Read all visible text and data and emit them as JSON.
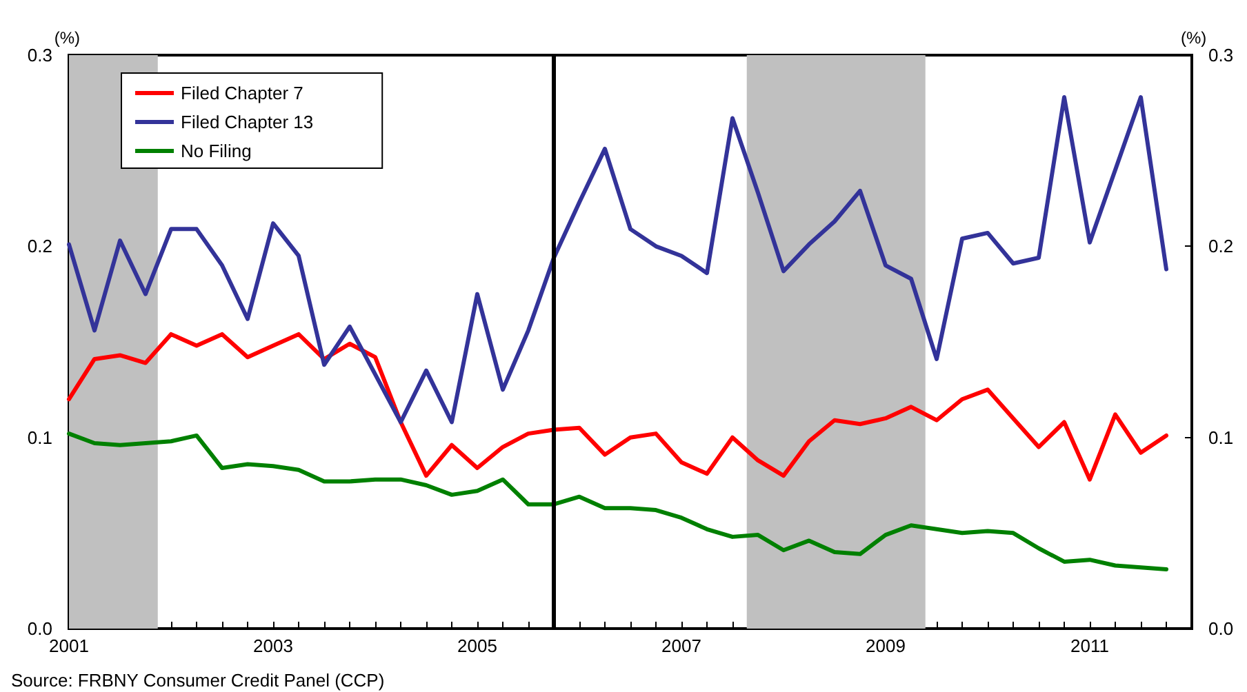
{
  "chart_data": {
    "type": "line",
    "ylabel": "(%)",
    "y2label": "(%)",
    "x": [
      2001,
      2001.25,
      2001.5,
      2001.75,
      2002,
      2002.25,
      2002.5,
      2002.75,
      2003,
      2003.25,
      2003.5,
      2003.75,
      2004,
      2004.25,
      2004.5,
      2004.75,
      2005,
      2005.25,
      2005.5,
      2005.75,
      2006,
      2006.25,
      2006.5,
      2006.75,
      2007,
      2007.25,
      2007.5,
      2007.75,
      2008,
      2008.25,
      2008.5,
      2008.75,
      2009,
      2009.25,
      2009.5,
      2009.75,
      2010,
      2010.25,
      2010.5,
      2010.75,
      2011,
      2011.25,
      2011.5,
      2011.75
    ],
    "series": [
      {
        "name": "Filed Chapter 7",
        "color": "#ff0000",
        "values": [
          0.12,
          0.141,
          0.143,
          0.139,
          0.154,
          0.148,
          0.154,
          0.142,
          0.148,
          0.154,
          0.141,
          0.149,
          0.142,
          0.108,
          0.08,
          0.096,
          0.084,
          0.095,
          0.102,
          0.104,
          0.105,
          0.091,
          0.1,
          0.102,
          0.087,
          0.081,
          0.1,
          0.088,
          0.08,
          0.098,
          0.109,
          0.107,
          0.11,
          0.116,
          0.109,
          0.12,
          0.125,
          0.11,
          0.095,
          0.108,
          0.078,
          0.112,
          0.092,
          0.101
        ]
      },
      {
        "name": "Filed Chapter 13",
        "color": "#333399",
        "values": [
          0.201,
          0.156,
          0.203,
          0.175,
          0.209,
          0.209,
          0.19,
          0.162,
          0.212,
          0.195,
          0.138,
          0.158,
          0.133,
          0.108,
          0.135,
          0.108,
          0.175,
          0.125,
          0.156,
          0.194,
          0.223,
          0.251,
          0.209,
          0.2,
          0.195,
          0.186,
          0.267,
          0.228,
          0.187,
          0.201,
          0.213,
          0.229,
          0.19,
          0.183,
          0.141,
          0.204,
          0.207,
          0.191,
          0.194,
          0.278,
          0.202,
          0.24,
          0.278,
          0.188
        ]
      },
      {
        "name": "No Filing",
        "color": "#008000",
        "values": [
          0.102,
          0.097,
          0.096,
          0.097,
          0.098,
          0.101,
          0.084,
          0.086,
          0.085,
          0.083,
          0.077,
          0.077,
          0.078,
          0.078,
          0.075,
          0.07,
          0.072,
          0.078,
          0.065,
          0.065,
          0.069,
          0.063,
          0.063,
          0.062,
          0.058,
          0.052,
          0.048,
          0.049,
          0.041,
          0.046,
          0.04,
          0.039,
          0.049,
          0.054,
          0.052,
          0.05,
          0.051,
          0.05,
          0.042,
          0.035,
          0.036,
          0.033,
          0.032,
          0.031
        ]
      }
    ],
    "xlim": [
      2001,
      2012
    ],
    "xticks": [
      2001,
      {
        "value": 2001.25,
        "label": null
      },
      {
        "value": 2001.5,
        "label": null
      },
      {
        "value": 2001.75,
        "label": null
      },
      {
        "value": 2002,
        "label": null
      },
      {
        "value": 2002.25,
        "label": null
      },
      {
        "value": 2002.5,
        "label": null
      },
      {
        "value": 2002.75,
        "label": null
      },
      2003,
      {
        "value": 2003.25,
        "label": null
      },
      {
        "value": 2003.5,
        "label": null
      },
      {
        "value": 2003.75,
        "label": null
      },
      {
        "value": 2004,
        "label": null
      },
      {
        "value": 2004.25,
        "label": null
      },
      {
        "value": 2004.5,
        "label": null
      },
      {
        "value": 2004.75,
        "label": null
      },
      2005,
      {
        "value": 2005.25,
        "label": null
      },
      {
        "value": 2005.5,
        "label": null
      },
      {
        "value": 2005.75,
        "label": null
      },
      {
        "value": 2006,
        "label": null
      },
      {
        "value": 2006.25,
        "label": null
      },
      {
        "value": 2006.5,
        "label": null
      },
      {
        "value": 2006.75,
        "label": null
      },
      2007,
      {
        "value": 2007.25,
        "label": null
      },
      {
        "value": 2007.5,
        "label": null
      },
      {
        "value": 2007.75,
        "label": null
      },
      {
        "value": 2008,
        "label": null
      },
      {
        "value": 2008.25,
        "label": null
      },
      {
        "value": 2008.5,
        "label": null
      },
      {
        "value": 2008.75,
        "label": null
      },
      2009,
      {
        "value": 2009.25,
        "label": null
      },
      {
        "value": 2009.5,
        "label": null
      },
      {
        "value": 2009.75,
        "label": null
      },
      {
        "value": 2010,
        "label": null
      },
      {
        "value": 2010.25,
        "label": null
      },
      {
        "value": 2010.5,
        "label": null
      },
      {
        "value": 2010.75,
        "label": null
      },
      2011,
      {
        "value": 2011.25,
        "label": null
      },
      {
        "value": 2011.5,
        "label": null
      },
      {
        "value": 2011.75,
        "label": null
      },
      {
        "value": 2012,
        "label": null
      }
    ],
    "ylim": [
      0,
      0.3
    ],
    "yticks": [
      {
        "value": 0,
        "label": "0.0"
      },
      0.1,
      0.2,
      0.3
    ],
    "y2lim": [
      0,
      0.3
    ],
    "y2ticks": [
      {
        "value": 0,
        "label": "0.0"
      },
      0.1,
      0.2,
      0.3
    ],
    "ref_lines": [
      {
        "axis": "x",
        "value": 2005.75,
        "color": "#000000"
      }
    ],
    "bands": [
      {
        "axis": "x",
        "from": 2001,
        "to": 2001.87,
        "color": "#c0c0c0"
      },
      {
        "axis": "x",
        "from": 2007.64,
        "to": 2009.39,
        "color": "#c0c0c0"
      }
    ],
    "annotations": [
      "Source: FRBNY Consumer Credit Panel (CCP)"
    ],
    "legend": "top left",
    "grid": false,
    "marker": "none",
    "line_style": "solid"
  }
}
